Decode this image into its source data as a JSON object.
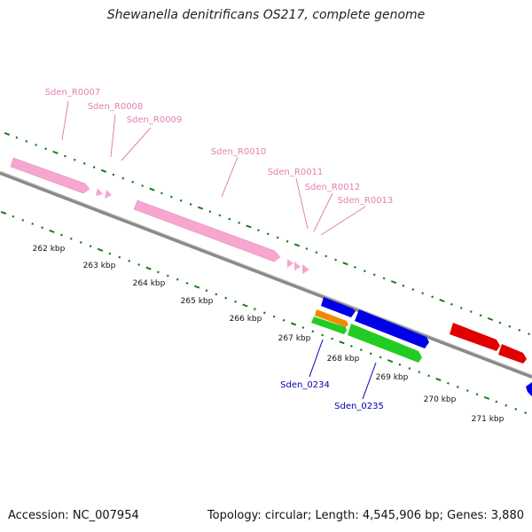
{
  "title": "Shewanella denitrificans OS217, complete genome",
  "footer": {
    "accession": "Accession: NC_007954",
    "summary": "Topology: circular; Length: 4,545,906 bp; Genes: 3,880"
  },
  "colors": {
    "backbone": "#8a8a8a",
    "tick": "#1c7a1c",
    "rrna_feature": "#f7a6cf",
    "rrna_label": "#e57fb2",
    "cds_forward": "#e00000",
    "cds_reverse": "#0000e8",
    "misc_orange": "#f08a00",
    "misc_green": "#22cc22",
    "cds_label": "#0000b0"
  },
  "kbp_labels": [
    "262 kbp",
    "263 kbp",
    "264 kbp",
    "265 kbp",
    "266 kbp",
    "267 kbp",
    "268 kbp",
    "269 kbp",
    "270 kbp",
    "271 kbp"
  ],
  "rrna_labels": [
    "Sden_R0007",
    "Sden_R0008",
    "Sden_R0009",
    "Sden_R0010",
    "Sden_R0011",
    "Sden_R0012",
    "Sden_R0013"
  ],
  "cds_labels": [
    "Sden_0234",
    "Sden_0235"
  ]
}
